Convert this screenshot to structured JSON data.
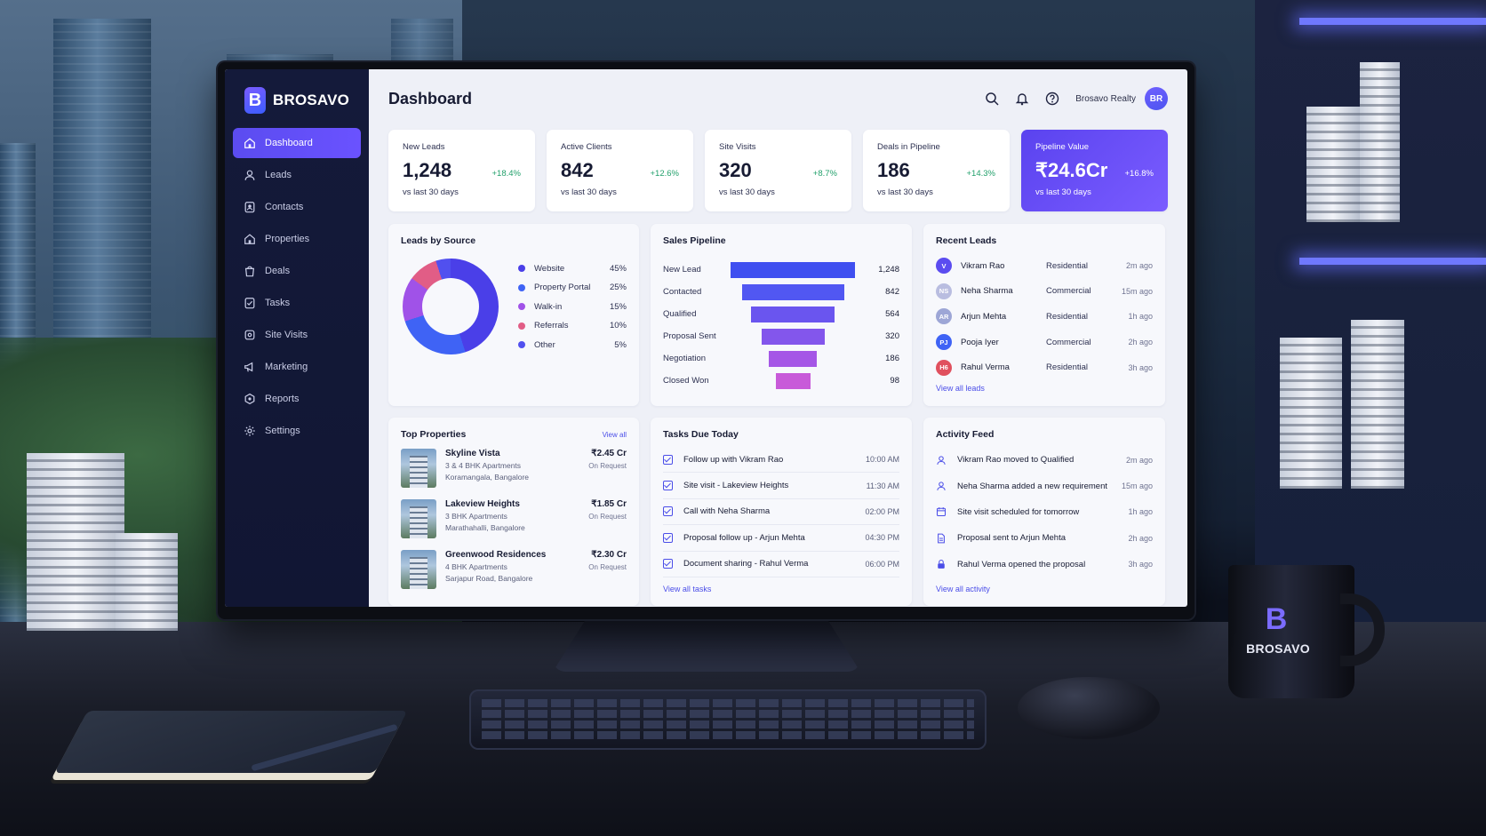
{
  "brand": {
    "name": "BROSAVO",
    "mark": "B",
    "accent": "#5b4cf0"
  },
  "sidebar": {
    "items": [
      {
        "label": "Dashboard",
        "icon": "home-icon",
        "active": true
      },
      {
        "label": "Leads",
        "icon": "user-icon"
      },
      {
        "label": "Contacts",
        "icon": "contact-icon"
      },
      {
        "label": "Properties",
        "icon": "home-icon"
      },
      {
        "label": "Deals",
        "icon": "bag-icon"
      },
      {
        "label": "Tasks",
        "icon": "checklist-icon"
      },
      {
        "label": "Site Visits",
        "icon": "pin-icon"
      },
      {
        "label": "Marketing",
        "icon": "megaphone-icon"
      },
      {
        "label": "Reports",
        "icon": "report-icon"
      },
      {
        "label": "Settings",
        "icon": "gear-icon"
      }
    ]
  },
  "header": {
    "title": "Dashboard",
    "org": "Brosavo Realty",
    "avatar": "BR"
  },
  "kpis": [
    {
      "label": "New Leads",
      "value": "1,248",
      "delta": "+18.4%",
      "sub": "vs last 30 days"
    },
    {
      "label": "Active Clients",
      "value": "842",
      "delta": "+12.6%",
      "sub": "vs last 30 days"
    },
    {
      "label": "Site Visits",
      "value": "320",
      "delta": "+8.7%",
      "sub": "vs last 30 days"
    },
    {
      "label": "Deals in Pipeline",
      "value": "186",
      "delta": "+14.3%",
      "sub": "vs last 30 days"
    },
    {
      "label": "Pipeline Value",
      "value": "₹24.6Cr",
      "delta": "+16.8%",
      "sub": "vs last 30 days"
    }
  ],
  "leads_by_source": {
    "title": "Leads by Source",
    "items": [
      {
        "label": "Website",
        "pct": "45%",
        "color": "#4a3fe8"
      },
      {
        "label": "Property Portal",
        "pct": "25%",
        "color": "#3f63f5"
      },
      {
        "label": "Walk-in",
        "pct": "15%",
        "color": "#a052e8"
      },
      {
        "label": "Referrals",
        "pct": "10%",
        "color": "#e15d86"
      },
      {
        "label": "Other",
        "pct": "5%",
        "color": "#5150ef"
      }
    ]
  },
  "sales_pipeline": {
    "title": "Sales Pipeline",
    "stages": [
      {
        "label": "New Lead",
        "value": "1,248",
        "num": 1248,
        "color": "#3f4ff0"
      },
      {
        "label": "Contacted",
        "value": "842",
        "num": 842,
        "color": "#5157f2"
      },
      {
        "label": "Qualified",
        "value": "564",
        "num": 564,
        "color": "#6a55ef"
      },
      {
        "label": "Proposal Sent",
        "value": "320",
        "num": 320,
        "color": "#8356ec"
      },
      {
        "label": "Negotiation",
        "value": "186",
        "num": 186,
        "color": "#a556e6"
      },
      {
        "label": "Closed Won",
        "value": "98",
        "num": 98,
        "color": "#c85ad9"
      }
    ]
  },
  "recent_leads": {
    "title": "Recent Leads",
    "link": "View all leads",
    "items": [
      {
        "initials": "V",
        "name": "Vikram Rao",
        "type": "Residential",
        "ago": "2m ago",
        "color": "#5b4cf0"
      },
      {
        "initials": "NS",
        "name": "Neha Sharma",
        "type": "Commercial",
        "ago": "15m ago",
        "color": "#b9bde0"
      },
      {
        "initials": "AR",
        "name": "Arjun Mehta",
        "type": "Residential",
        "ago": "1h ago",
        "color": "#9da6d6"
      },
      {
        "initials": "PJ",
        "name": "Pooja Iyer",
        "type": "Commercial",
        "ago": "2h ago",
        "color": "#3f63f5"
      },
      {
        "initials": "H6",
        "name": "Rahul Verma",
        "type": "Residential",
        "ago": "3h ago",
        "color": "#e0505e"
      }
    ]
  },
  "top_properties": {
    "title": "Top Properties",
    "link": "View all",
    "items": [
      {
        "name": "Skyline Vista",
        "type": "3 & 4 BHK Apartments",
        "location": "Koramangala, Bangalore",
        "price": "₹2.45 Cr",
        "note": "On Request"
      },
      {
        "name": "Lakeview Heights",
        "type": "3 BHK Apartments",
        "location": "Marathahalli, Bangalore",
        "price": "₹1.85 Cr",
        "note": "On Request"
      },
      {
        "name": "Greenwood Residences",
        "type": "4 BHK Apartments",
        "location": "Sarjapur Road, Bangalore",
        "price": "₹2.30 Cr",
        "note": "On Request"
      }
    ]
  },
  "tasks": {
    "title": "Tasks Due Today",
    "link": "View all tasks",
    "items": [
      {
        "label": "Follow up with Vikram Rao",
        "time": "10:00 AM"
      },
      {
        "label": "Site visit - Lakeview Heights",
        "time": "11:30 AM"
      },
      {
        "label": "Call with Neha Sharma",
        "time": "02:00 PM"
      },
      {
        "label": "Proposal follow up - Arjun Mehta",
        "time": "04:30 PM"
      },
      {
        "label": "Document sharing - Rahul Verma",
        "time": "06:00 PM"
      }
    ]
  },
  "activity": {
    "title": "Activity Feed",
    "link": "View all activity",
    "items": [
      {
        "text": "Vikram Rao moved to Qualified",
        "ago": "2m ago",
        "icon": "user-icon"
      },
      {
        "text": "Neha Sharma added a new requirement",
        "ago": "15m ago",
        "icon": "user-icon"
      },
      {
        "text": "Site visit scheduled for tomorrow",
        "ago": "1h ago",
        "icon": "calendar-icon"
      },
      {
        "text": "Proposal sent to Arjun Mehta",
        "ago": "2h ago",
        "icon": "document-icon"
      },
      {
        "text": "Rahul Verma opened the proposal",
        "ago": "3h ago",
        "icon": "lock-icon"
      }
    ]
  },
  "mug": {
    "mark": "B",
    "text": "BROSAVO"
  }
}
